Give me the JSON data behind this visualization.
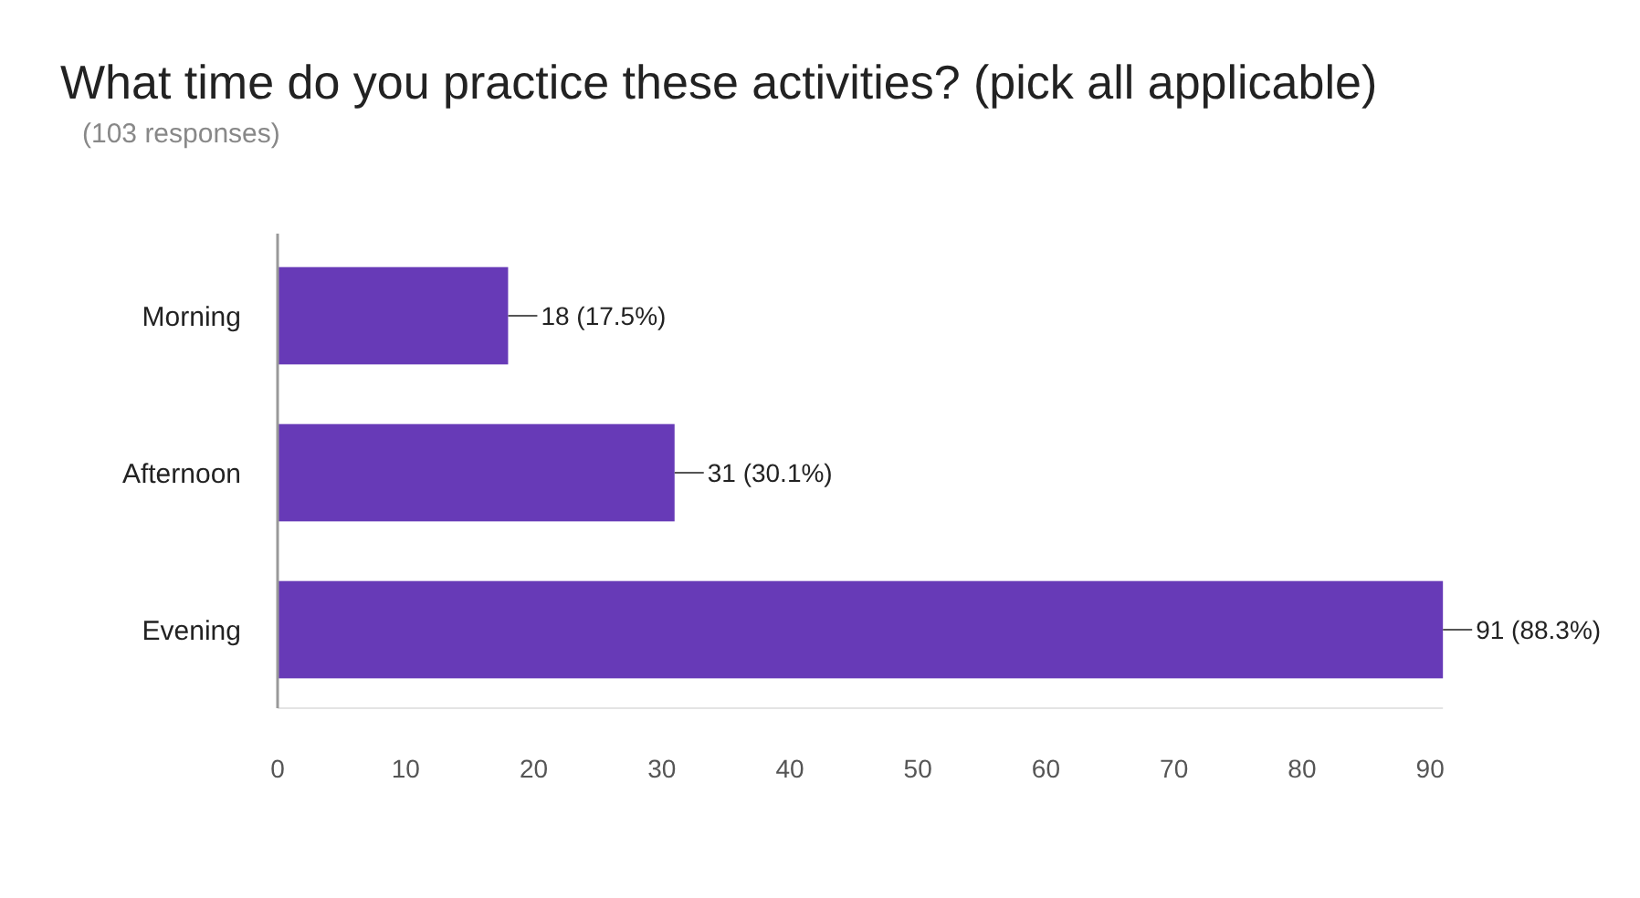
{
  "chart_data": {
    "type": "bar",
    "title": "What time do you practice these activities? (pick all applicable)",
    "subtitle": "(103 responses)",
    "orientation": "horizontal",
    "categories": [
      "Morning",
      "Afternoon",
      "Evening"
    ],
    "values": [
      18,
      31,
      91
    ],
    "color": "#673ab7",
    "value_labels": [
      "18 (17.5%)",
      "31 (30.1%)",
      "91 (88.3%)"
    ],
    "xlim": [
      0,
      91
    ],
    "xticks": [
      0,
      10,
      20,
      30,
      40,
      50,
      60,
      70,
      80,
      90
    ]
  }
}
